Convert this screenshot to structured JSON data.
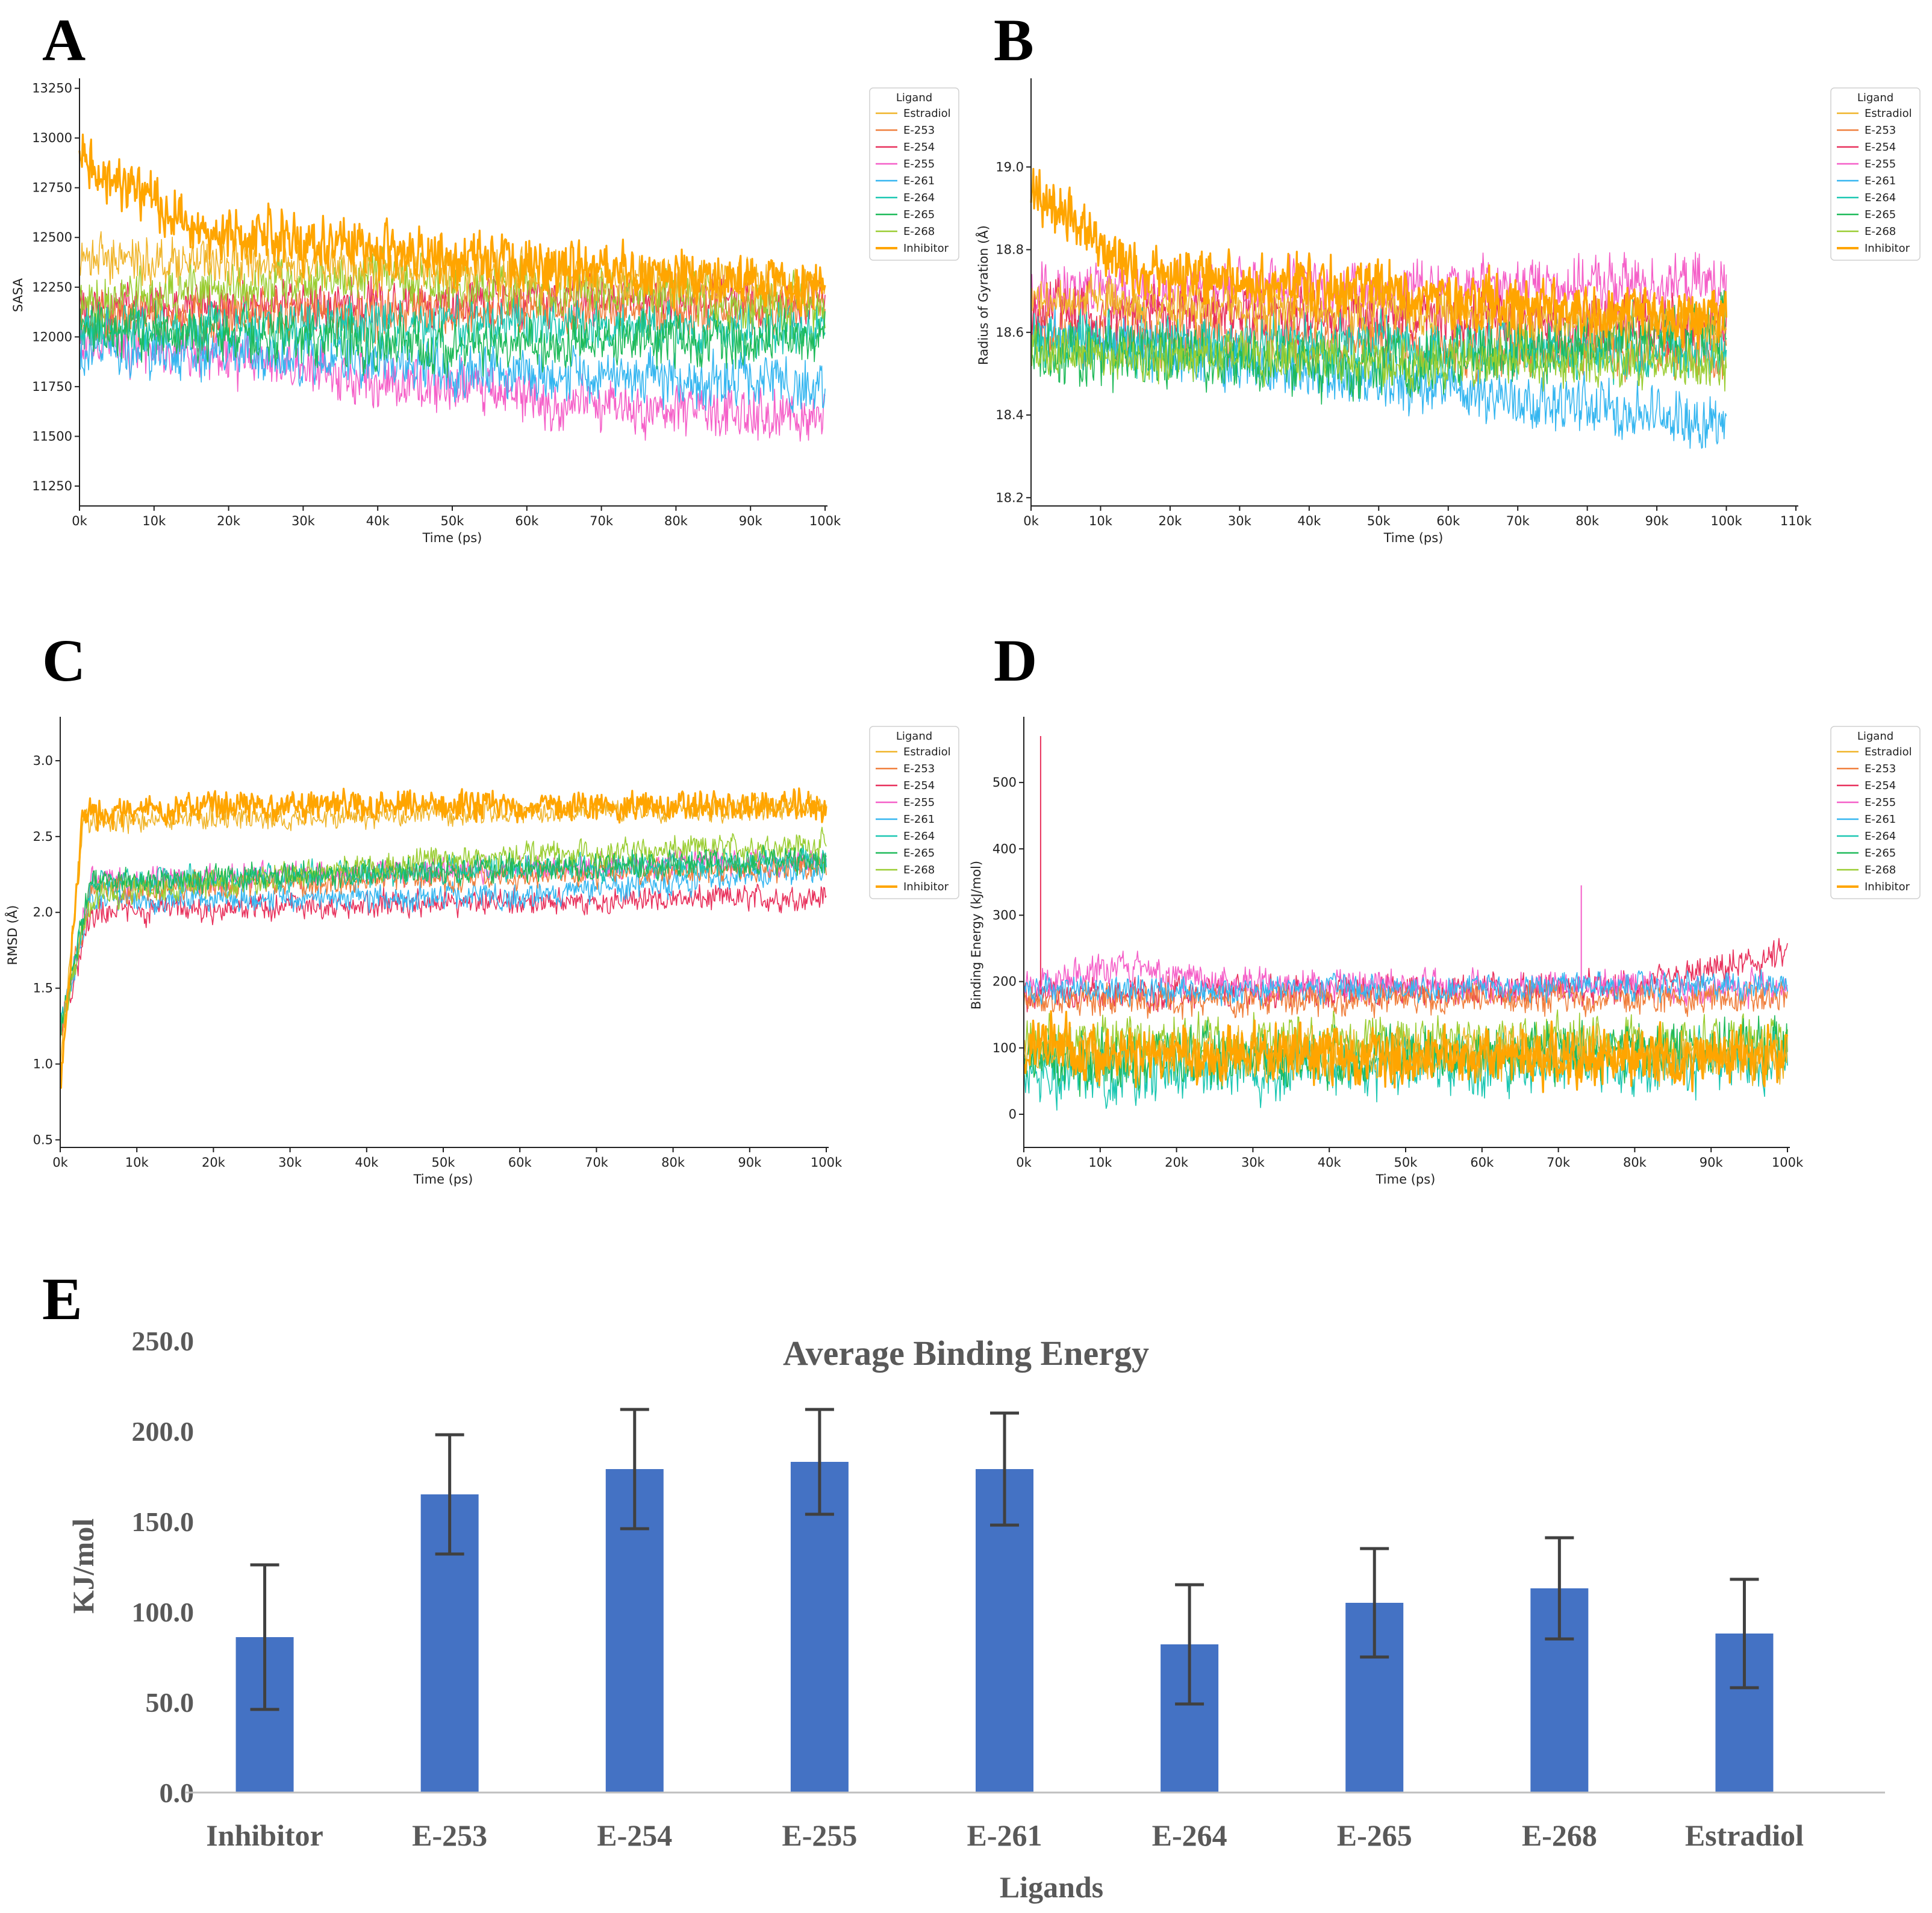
{
  "panels": {
    "A": "A",
    "B": "B",
    "C": "C",
    "D": "D",
    "E": "E"
  },
  "legend_title": "Ligand",
  "ligands": [
    "Estradiol",
    "E-253",
    "E-254",
    "E-255",
    "E-261",
    "E-264",
    "E-265",
    "E-268",
    "Inhibitor"
  ],
  "colors": {
    "Estradiol": "#f0b429",
    "E-253": "#f07f3c",
    "E-254": "#e8315c",
    "E-255": "#f55fc8",
    "E-261": "#35b6f0",
    "E-264": "#1cc7b3",
    "E-265": "#1fba5a",
    "E-268": "#9acd32",
    "Inhibitor": "#ffa500",
    "bar": "#4472c4",
    "error": "#404040"
  },
  "chart_data": [
    {
      "id": "A",
      "type": "line",
      "xlabel": "Time (ps)",
      "ylabel": "SASA",
      "xlim": [
        0,
        100000
      ],
      "ylim": [
        11150,
        13270
      ],
      "xticks": [
        0,
        10000,
        20000,
        30000,
        40000,
        50000,
        60000,
        70000,
        80000,
        90000,
        100000
      ],
      "xtick_labels": [
        "0k",
        "10k",
        "20k",
        "30k",
        "40k",
        "50k",
        "60k",
        "70k",
        "80k",
        "90k",
        "100k"
      ],
      "yticks": [
        11250,
        11500,
        11750,
        12000,
        12250,
        12500,
        12750,
        13000,
        13250
      ],
      "ytick_labels": [
        "11250",
        "11500",
        "11750",
        "12000",
        "12250",
        "12500",
        "12750",
        "13000",
        "13250"
      ],
      "series": [
        {
          "name": "E-255",
          "seed": 11,
          "levels": [
            [
              0,
              12000
            ],
            [
              30000,
              11850
            ],
            [
              70000,
              11650
            ],
            [
              100000,
              11600
            ]
          ],
          "noise": 140,
          "spike": null
        },
        {
          "name": "E-261",
          "seed": 12,
          "levels": [
            [
              0,
              11950
            ],
            [
              50000,
              11850
            ],
            [
              100000,
              11750
            ]
          ],
          "noise": 140,
          "spike": null
        },
        {
          "name": "E-254",
          "seed": 13,
          "levels": [
            [
              0,
              12150
            ],
            [
              100000,
              12200
            ]
          ],
          "noise": 130,
          "spike": null
        },
        {
          "name": "E-253",
          "seed": 14,
          "levels": [
            [
              0,
              12100
            ],
            [
              100000,
              12150
            ]
          ],
          "noise": 130,
          "spike": null
        },
        {
          "name": "E-264",
          "seed": 15,
          "levels": [
            [
              0,
              12050
            ],
            [
              100000,
              12050
            ]
          ],
          "noise": 130,
          "spike": null
        },
        {
          "name": "E-268",
          "seed": 16,
          "levels": [
            [
              0,
              12200
            ],
            [
              40000,
              12300
            ],
            [
              100000,
              12150
            ]
          ],
          "noise": 140,
          "spike": null
        },
        {
          "name": "E-265",
          "seed": 17,
          "levels": [
            [
              0,
              12050
            ],
            [
              50000,
              11950
            ],
            [
              100000,
              12000
            ]
          ],
          "noise": 140,
          "spike": null
        },
        {
          "name": "Estradiol",
          "seed": 18,
          "levels": [
            [
              0,
              12400
            ],
            [
              100000,
              12250
            ]
          ],
          "noise": 120,
          "spike": null
        },
        {
          "name": "Inhibitor",
          "seed": 19,
          "levels": [
            [
              0,
              12900
            ],
            [
              15000,
              12550
            ],
            [
              50000,
              12400
            ],
            [
              100000,
              12250
            ]
          ],
          "noise": 140,
          "spike": null
        }
      ]
    },
    {
      "id": "B",
      "type": "line",
      "xlabel": "Time (ps)",
      "ylabel": "Radius of Gyration (Å)",
      "xlim": [
        0,
        110000
      ],
      "ylim": [
        18.18,
        19.2
      ],
      "xticks": [
        0,
        10000,
        20000,
        30000,
        40000,
        50000,
        60000,
        70000,
        80000,
        90000,
        100000,
        110000
      ],
      "xtick_labels": [
        "0k",
        "10k",
        "20k",
        "30k",
        "40k",
        "50k",
        "60k",
        "70k",
        "80k",
        "90k",
        "100k",
        "110k"
      ],
      "yticks": [
        18.2,
        18.4,
        18.6,
        18.8,
        19.0
      ],
      "ytick_labels": [
        "18.2",
        "18.4",
        "18.6",
        "18.8",
        "19.0"
      ],
      "series": [
        {
          "name": "E-255",
          "seed": 21,
          "levels": [
            [
              0,
              18.7
            ],
            [
              100000,
              18.72
            ]
          ],
          "noise": 0.07,
          "spike": null
        },
        {
          "name": "E-253",
          "seed": 22,
          "levels": [
            [
              0,
              18.6
            ],
            [
              100000,
              18.55
            ]
          ],
          "noise": 0.07,
          "spike": null
        },
        {
          "name": "E-261",
          "seed": 23,
          "levels": [
            [
              0,
              18.6
            ],
            [
              40000,
              18.5
            ],
            [
              100000,
              18.38
            ]
          ],
          "noise": 0.07,
          "spike": null
        },
        {
          "name": "E-254",
          "seed": 24,
          "levels": [
            [
              0,
              18.65
            ],
            [
              100000,
              18.62
            ]
          ],
          "noise": 0.07,
          "spike": null
        },
        {
          "name": "E-264",
          "seed": 25,
          "levels": [
            [
              0,
              18.58
            ],
            [
              100000,
              18.55
            ]
          ],
          "noise": 0.07,
          "spike": null
        },
        {
          "name": "E-265",
          "seed": 26,
          "levels": [
            [
              0,
              18.55
            ],
            [
              50000,
              18.52
            ],
            [
              100000,
              18.62
            ]
          ],
          "noise": 0.08,
          "spike": null
        },
        {
          "name": "E-268",
          "seed": 27,
          "levels": [
            [
              0,
              18.55
            ],
            [
              100000,
              18.52
            ]
          ],
          "noise": 0.06,
          "spike": null
        },
        {
          "name": "Estradiol",
          "seed": 28,
          "levels": [
            [
              0,
              18.68
            ],
            [
              100000,
              18.62
            ]
          ],
          "noise": 0.06,
          "spike": null
        },
        {
          "name": "Inhibitor",
          "seed": 29,
          "levels": [
            [
              0,
              18.95
            ],
            [
              15000,
              18.75
            ],
            [
              100000,
              18.63
            ]
          ],
          "noise": 0.07,
          "spike": null
        }
      ]
    },
    {
      "id": "C",
      "type": "line",
      "xlabel": "Time (ps)",
      "ylabel": "RMSD (Å)",
      "xlim": [
        0,
        100000
      ],
      "ylim": [
        0.45,
        3.25
      ],
      "xticks": [
        0,
        10000,
        20000,
        30000,
        40000,
        50000,
        60000,
        70000,
        80000,
        90000,
        100000
      ],
      "xtick_labels": [
        "0k",
        "10k",
        "20k",
        "30k",
        "40k",
        "50k",
        "60k",
        "70k",
        "80k",
        "90k",
        "100k"
      ],
      "yticks": [
        0.5,
        1.0,
        1.5,
        2.0,
        2.5,
        3.0
      ],
      "ytick_labels": [
        "0.5",
        "1.0",
        "1.5",
        "2.0",
        "2.5",
        "3.0"
      ],
      "series": [
        {
          "name": "E-254",
          "seed": 31,
          "levels": [
            [
              0,
              1.2
            ],
            [
              4000,
              2.0
            ],
            [
              40000,
              2.05
            ],
            [
              100000,
              2.1
            ]
          ],
          "noise": 0.09,
          "spike": null
        },
        {
          "name": "E-261",
          "seed": 32,
          "levels": [
            [
              0,
              1.2
            ],
            [
              4000,
              2.1
            ],
            [
              60000,
              2.1
            ],
            [
              100000,
              2.3
            ]
          ],
          "noise": 0.09,
          "spike": null
        },
        {
          "name": "E-255",
          "seed": 33,
          "levels": [
            [
              0,
              1.2
            ],
            [
              4000,
              2.2
            ],
            [
              100000,
              2.35
            ]
          ],
          "noise": 0.09,
          "spike": null
        },
        {
          "name": "E-253",
          "seed": 34,
          "levels": [
            [
              0,
              1.2
            ],
            [
              4000,
              2.15
            ],
            [
              100000,
              2.3
            ]
          ],
          "noise": 0.09,
          "spike": null
        },
        {
          "name": "E-264",
          "seed": 35,
          "levels": [
            [
              0,
              1.2
            ],
            [
              4000,
              2.2
            ],
            [
              100000,
              2.35
            ]
          ],
          "noise": 0.09,
          "spike": null
        },
        {
          "name": "E-268",
          "seed": 36,
          "levels": [
            [
              0,
              1.2
            ],
            [
              4000,
              2.1
            ],
            [
              50000,
              2.35
            ],
            [
              100000,
              2.45
            ]
          ],
          "noise": 0.09,
          "spike": null
        },
        {
          "name": "E-265",
          "seed": 37,
          "levels": [
            [
              0,
              1.2
            ],
            [
              4000,
              2.2
            ],
            [
              100000,
              2.35
            ]
          ],
          "noise": 0.09,
          "spike": null
        },
        {
          "name": "Estradiol",
          "seed": 38,
          "levels": [
            [
              0,
              1.0
            ],
            [
              3000,
              2.6
            ],
            [
              100000,
              2.7
            ]
          ],
          "noise": 0.08,
          "spike": null
        },
        {
          "name": "Inhibitor",
          "seed": 39,
          "levels": [
            [
              0,
              0.85
            ],
            [
              3000,
              2.65
            ],
            [
              20000,
              2.7
            ],
            [
              100000,
              2.7
            ]
          ],
          "noise": 0.1,
          "spike": null
        }
      ]
    },
    {
      "id": "D",
      "type": "line",
      "xlabel": "Time (ps)",
      "ylabel": "Binding Energy (kJ/mol)",
      "xlim": [
        0,
        100000
      ],
      "ylim": [
        -50,
        590
      ],
      "xticks": [
        0,
        10000,
        20000,
        30000,
        40000,
        50000,
        60000,
        70000,
        80000,
        90000,
        100000
      ],
      "xtick_labels": [
        "0k",
        "10k",
        "20k",
        "30k",
        "40k",
        "50k",
        "60k",
        "70k",
        "80k",
        "90k",
        "100k"
      ],
      "yticks": [
        0,
        100,
        200,
        300,
        400,
        500
      ],
      "ytick_labels": [
        "0",
        "100",
        "200",
        "300",
        "400",
        "500"
      ],
      "series": [
        {
          "name": "E-254",
          "seed": 41,
          "levels": [
            [
              0,
              180
            ],
            [
              80000,
              190
            ],
            [
              100000,
              240
            ]
          ],
          "noise": 25,
          "spike": [
            2200,
            570
          ]
        },
        {
          "name": "E-255",
          "seed": 42,
          "levels": [
            [
              0,
              190
            ],
            [
              12000,
              220
            ],
            [
              30000,
              195
            ],
            [
              100000,
              190
            ]
          ],
          "noise": 25,
          "spike": [
            73000,
            345
          ]
        },
        {
          "name": "E-253",
          "seed": 43,
          "levels": [
            [
              0,
              170
            ],
            [
              100000,
              175
            ]
          ],
          "noise": 25,
          "spike": null
        },
        {
          "name": "E-261",
          "seed": 44,
          "levels": [
            [
              0,
              185
            ],
            [
              100000,
              195
            ]
          ],
          "noise": 22,
          "spike": null
        },
        {
          "name": "E-268",
          "seed": 45,
          "levels": [
            [
              0,
              110
            ],
            [
              100000,
              110
            ]
          ],
          "noise": 40,
          "spike": null
        },
        {
          "name": "E-264",
          "seed": 46,
          "levels": [
            [
              0,
              60
            ],
            [
              100000,
              80
            ]
          ],
          "noise": 45,
          "spike": null
        },
        {
          "name": "E-265",
          "seed": 47,
          "levels": [
            [
              0,
              80
            ],
            [
              100000,
              100
            ]
          ],
          "noise": 45,
          "spike": null
        },
        {
          "name": "Estradiol",
          "seed": 48,
          "levels": [
            [
              0,
              90
            ],
            [
              100000,
              90
            ]
          ],
          "noise": 40,
          "spike": null
        },
        {
          "name": "Inhibitor",
          "seed": 49,
          "levels": [
            [
              0,
              110
            ],
            [
              12000,
              90
            ],
            [
              100000,
              85
            ]
          ],
          "noise": 45,
          "spike": null
        }
      ]
    },
    {
      "id": "E",
      "type": "bar",
      "title": "Average Binding  Energy",
      "xlabel": "Ligands",
      "ylabel": "KJ/mol",
      "ylim": [
        0,
        250
      ],
      "yticks": [
        0,
        50,
        100,
        150,
        200,
        250
      ],
      "ytick_labels": [
        "0.0",
        "50.0",
        "100.0",
        "150.0",
        "200.0",
        "250.0"
      ],
      "categories": [
        "Inhibitor",
        "E-253",
        "E-254",
        "E-255",
        "E-261",
        "E-264",
        "E-265",
        "E-268",
        "Estradiol"
      ],
      "values": [
        86,
        165,
        179,
        183,
        179,
        82,
        105,
        113,
        88
      ],
      "errors": [
        40,
        33,
        33,
        29,
        31,
        33,
        30,
        28,
        30
      ]
    }
  ]
}
